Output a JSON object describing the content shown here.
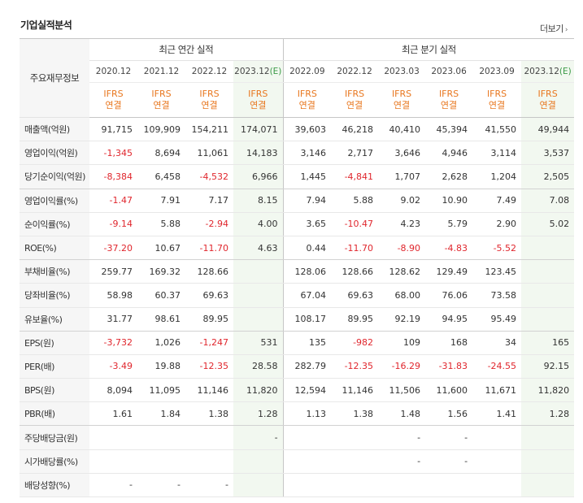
{
  "section": {
    "title": "기업실적분석",
    "more_label": "더보기",
    "more_icon": "chevron-right-icon"
  },
  "header": {
    "corner": "주요재무정보",
    "annual_label": "최근 연간 실적",
    "quarterly_label": "최근 분기 실적",
    "ifrs_line1": "IFRS",
    "ifrs_line2": "연결",
    "periods": [
      {
        "date": "2020.12",
        "est": ""
      },
      {
        "date": "2021.12",
        "est": ""
      },
      {
        "date": "2022.12",
        "est": ""
      },
      {
        "date": "2023.12",
        "est": "(E)"
      },
      {
        "date": "2022.09",
        "est": ""
      },
      {
        "date": "2022.12",
        "est": ""
      },
      {
        "date": "2023.03",
        "est": ""
      },
      {
        "date": "2023.06",
        "est": ""
      },
      {
        "date": "2023.09",
        "est": ""
      },
      {
        "date": "2023.12",
        "est": "(E)"
      }
    ]
  },
  "rows": [
    {
      "label": "매출액(억원)",
      "values": [
        "91,715",
        "109,909",
        "154,211",
        "174,071",
        "39,603",
        "46,218",
        "40,410",
        "45,394",
        "41,550",
        "49,944"
      ]
    },
    {
      "label": "영업이익(억원)",
      "values": [
        "-1,345",
        "8,694",
        "11,061",
        "14,183",
        "3,146",
        "2,717",
        "3,646",
        "4,946",
        "3,114",
        "3,537"
      ]
    },
    {
      "label": "당기순이익(억원)",
      "values": [
        "-8,384",
        "6,458",
        "-4,532",
        "6,966",
        "1,445",
        "-4,841",
        "1,707",
        "2,628",
        "1,204",
        "2,505"
      ]
    },
    {
      "label": "영업이익률(%)",
      "values": [
        "-1.47",
        "7.91",
        "7.17",
        "8.15",
        "7.94",
        "5.88",
        "9.02",
        "10.90",
        "7.49",
        "7.08"
      ]
    },
    {
      "label": "순이익률(%)",
      "values": [
        "-9.14",
        "5.88",
        "-2.94",
        "4.00",
        "3.65",
        "-10.47",
        "4.23",
        "5.79",
        "2.90",
        "5.02"
      ]
    },
    {
      "label": "ROE(%)",
      "values": [
        "-37.20",
        "10.67",
        "-11.70",
        "4.63",
        "0.44",
        "-11.70",
        "-8.90",
        "-4.83",
        "-5.52",
        ""
      ]
    },
    {
      "label": "부채비율(%)",
      "values": [
        "259.77",
        "169.32",
        "128.66",
        "",
        "128.06",
        "128.66",
        "128.62",
        "129.49",
        "123.45",
        ""
      ]
    },
    {
      "label": "당좌비율(%)",
      "values": [
        "58.98",
        "60.37",
        "69.63",
        "",
        "67.04",
        "69.63",
        "68.00",
        "76.06",
        "73.58",
        ""
      ]
    },
    {
      "label": "유보율(%)",
      "values": [
        "31.77",
        "98.61",
        "89.95",
        "",
        "108.17",
        "89.95",
        "92.19",
        "94.95",
        "95.49",
        ""
      ]
    },
    {
      "label": "EPS(원)",
      "values": [
        "-3,732",
        "1,026",
        "-1,247",
        "531",
        "135",
        "-982",
        "109",
        "168",
        "34",
        "165"
      ]
    },
    {
      "label": "PER(배)",
      "values": [
        "-3.49",
        "19.88",
        "-12.35",
        "28.58",
        "282.79",
        "-12.35",
        "-16.29",
        "-31.83",
        "-24.55",
        "92.15"
      ]
    },
    {
      "label": "BPS(원)",
      "values": [
        "8,094",
        "11,095",
        "11,146",
        "11,820",
        "12,594",
        "11,146",
        "11,506",
        "11,600",
        "11,671",
        "11,820"
      ]
    },
    {
      "label": "PBR(배)",
      "values": [
        "1.61",
        "1.84",
        "1.38",
        "1.28",
        "1.13",
        "1.38",
        "1.48",
        "1.56",
        "1.41",
        "1.28"
      ]
    },
    {
      "label": "주당배당금(원)",
      "values": [
        "",
        "",
        "",
        "-",
        "",
        "",
        "-",
        "-",
        "",
        ""
      ]
    },
    {
      "label": "시가배당률(%)",
      "values": [
        "",
        "",
        "",
        "",
        "",
        "",
        "-",
        "-",
        "",
        ""
      ]
    },
    {
      "label": "배당성향(%)",
      "values": [
        "-",
        "-",
        "-",
        "",
        "",
        "",
        "",
        "",
        "",
        ""
      ]
    }
  ],
  "colors": {
    "negative": "#e0262d",
    "ifrs": "#e8771f",
    "estimate_marker": "#3a9a46",
    "estimate_bg": "#f2f8f0",
    "rowhead_bg": "#f6f6f6"
  }
}
